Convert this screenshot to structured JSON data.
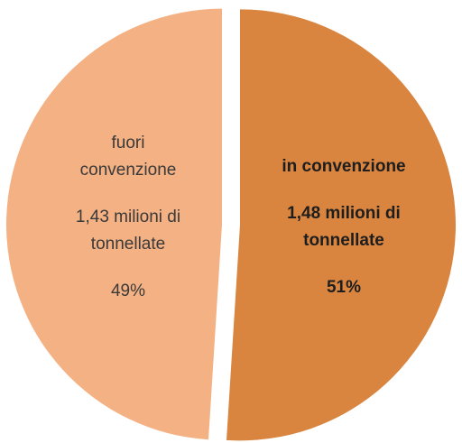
{
  "chart_data": {
    "type": "pie",
    "title": "",
    "slices": [
      {
        "name_lines": [
          "in convenzione"
        ],
        "value_lines": [
          "1,48 milioni di",
          "tonnellate"
        ],
        "percent_label": "51%",
        "value": 51,
        "color": "#d9853f"
      },
      {
        "name_lines": [
          "fuori",
          "convenzione"
        ],
        "value_lines": [
          "1,43 milioni di",
          "tonnellate"
        ],
        "percent_label": "49%",
        "value": 49,
        "color": "#f4b183"
      }
    ],
    "legend": "none"
  }
}
